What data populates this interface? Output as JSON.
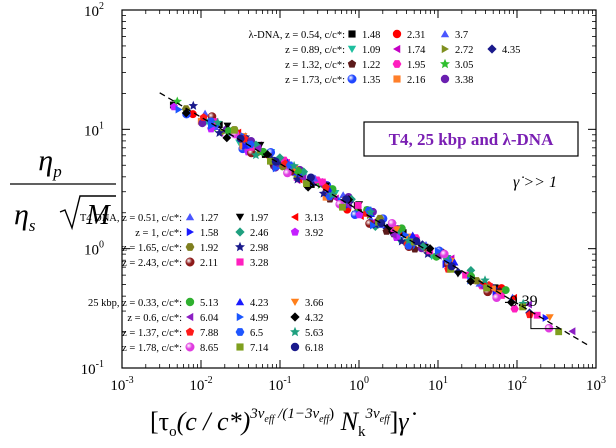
{
  "chart_data": {
    "type": "scatter",
    "title": "",
    "xscale": "log",
    "yscale": "log",
    "xlim": [
      0.001,
      1000
    ],
    "ylim": [
      0.1,
      100
    ],
    "x_ticks": [
      0.001,
      0.01,
      0.1,
      1,
      10,
      100,
      1000
    ],
    "x_tick_labels": [
      {
        "base": "10",
        "exp": "-3"
      },
      {
        "base": "10",
        "exp": "-2"
      },
      {
        "base": "10",
        "exp": "-1"
      },
      {
        "base": "10",
        "exp": "0"
      },
      {
        "base": "10",
        "exp": "1"
      },
      {
        "base": "10",
        "exp": "2"
      },
      {
        "base": "10",
        "exp": "3"
      }
    ],
    "y_ticks": [
      0.1,
      1,
      10,
      100
    ],
    "y_tick_labels": [
      {
        "base": "10",
        "exp": "-1"
      },
      {
        "base": "10",
        "exp": "0"
      },
      {
        "base": "10",
        "exp": "1"
      },
      {
        "base": "10",
        "exp": "2"
      }
    ],
    "ylabel": {
      "num": "η",
      "num_sub": "p",
      "den": "η",
      "den_sub": "s",
      "den_root": "M"
    },
    "xlabel": {
      "open": "[τ",
      "tau_sub": "o",
      "middle": "(c / c*)",
      "exp1": "3ν",
      "exp1_sub": "eff",
      "exp2": " /(1−3ν",
      "exp2_sub": "eff",
      "exp3": ")",
      "nk": "N",
      "nk_sub": "k",
      "nk_exp": "3ν",
      "nk_exp_sub": "eff",
      "close": "]",
      "gammadot": "γ̇"
    },
    "fit_line": {
      "slope": -0.39,
      "x_range": [
        0.003,
        800
      ],
      "y_at_1": 2.1,
      "style": "dashed"
    },
    "slope_annotation": "-0.39",
    "rate_annotation": "γ̇ >> 1",
    "box_annotation": "T4, 25 kbp and λ-DNA",
    "legend_groups": [
      {
        "group": "λ-DNA",
        "rows": [
          {
            "label": "λ-DNA, z = 0.54, c/c*:",
            "items": [
              {
                "value": "1.48",
                "color": "#000000",
                "marker": "square"
              },
              {
                "value": "2.31",
                "color": "#ff0000",
                "marker": "circle"
              },
              {
                "value": "3.7",
                "color": "#4a56ff",
                "marker": "triangle-up"
              }
            ]
          },
          {
            "label": "z = 0.89, c/c*:",
            "items": [
              {
                "value": "1.09",
                "color": "#1fbf9f",
                "marker": "triangle-down"
              },
              {
                "value": "1.74",
                "color": "#c400c4",
                "marker": "triangle-left"
              },
              {
                "value": "2.72",
                "color": "#7f8f1f",
                "marker": "triangle-right"
              },
              {
                "value": "4.35",
                "color": "#1a1a8c",
                "marker": "diamond"
              }
            ]
          },
          {
            "label": "z = 1.32, c/c*:",
            "items": [
              {
                "value": "1.22",
                "color": "#5c1a1a",
                "marker": "pentagon"
              },
              {
                "value": "1.95",
                "color": "#ff1fbf",
                "marker": "hexagon"
              },
              {
                "value": "3.05",
                "color": "#2fbf2f",
                "marker": "star"
              }
            ]
          },
          {
            "label": "z = 1.73, c/c*:",
            "items": [
              {
                "value": "1.35",
                "color": "#2147ff",
                "marker": "ball"
              },
              {
                "value": "2.16",
                "color": "#ff7f2a",
                "marker": "square"
              },
              {
                "value": "3.38",
                "color": "#6a1fb0",
                "marker": "circle"
              }
            ]
          }
        ]
      },
      {
        "group": "T4 DNA",
        "rows": [
          {
            "label": "T4 DNA, z = 0.51, c/c*:",
            "items": [
              {
                "value": "1.27",
                "color": "#4a56ff",
                "marker": "triangle-up"
              },
              {
                "value": "1.97",
                "color": "#000000",
                "marker": "triangle-down"
              },
              {
                "value": "3.13",
                "color": "#ff0000",
                "marker": "triangle-left"
              }
            ]
          },
          {
            "label": "z = 1,     c/c*:",
            "items": [
              {
                "value": "1.58",
                "color": "#1a1aff",
                "marker": "triangle-right"
              },
              {
                "value": "2.46",
                "color": "#1f9f7f",
                "marker": "diamond"
              },
              {
                "value": "3.92",
                "color": "#c41fff",
                "marker": "pentagon"
              }
            ]
          },
          {
            "label": "z = 1.65, c/c*:",
            "items": [
              {
                "value": "1.92",
                "color": "#7f7f1f",
                "marker": "hexagon"
              },
              {
                "value": "2.98",
                "color": "#1a1a8c",
                "marker": "star"
              }
            ]
          },
          {
            "label": "z = 2.43, c/c*:",
            "items": [
              {
                "value": "2.11",
                "color": "#8c1a1a",
                "marker": "ball"
              },
              {
                "value": "3.28",
                "color": "#ff1fbf",
                "marker": "square"
              }
            ]
          }
        ]
      },
      {
        "group": "25 kbp",
        "rows": [
          {
            "label": "25 kbp, z = 0.33, c/c*:",
            "items": [
              {
                "value": "5.13",
                "color": "#2fb02f",
                "marker": "circle"
              },
              {
                "value": "4.23",
                "color": "#1a1aff",
                "marker": "triangle-up"
              },
              {
                "value": "3.66",
                "color": "#ff7f1a",
                "marker": "triangle-down"
              }
            ]
          },
          {
            "label": "z = 0.6,   c/c*:",
            "items": [
              {
                "value": "6.04",
                "color": "#8c1fc4",
                "marker": "triangle-left"
              },
              {
                "value": "4.99",
                "color": "#1a56ff",
                "marker": "triangle-right"
              },
              {
                "value": "4.32",
                "color": "#000000",
                "marker": "diamond"
              }
            ]
          },
          {
            "label": "z = 1.37, c/c*:",
            "items": [
              {
                "value": "7.88",
                "color": "#ff1a1a",
                "marker": "pentagon"
              },
              {
                "value": "6.5",
                "color": "#1f56ff",
                "marker": "hexagon"
              },
              {
                "value": "5.63",
                "color": "#1fa07f",
                "marker": "star"
              }
            ]
          },
          {
            "label": "z = 1.78, c/c*:",
            "items": [
              {
                "value": "8.65",
                "color": "#e03ce0",
                "marker": "ball"
              },
              {
                "value": "7.14",
                "color": "#7f9f1f",
                "marker": "square"
              },
              {
                "value": "6.18",
                "color": "#1a1a8c",
                "marker": "circle"
              }
            ]
          }
        ]
      }
    ]
  }
}
